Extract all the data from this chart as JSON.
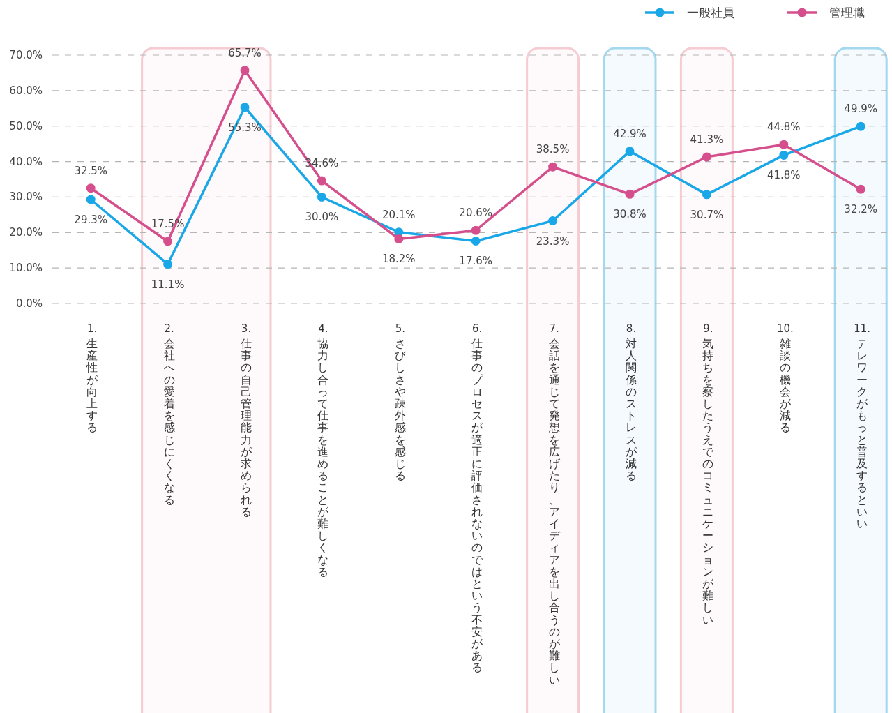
{
  "chart_data": {
    "type": "line",
    "categories": [
      "1.生産性が向上する",
      "2.会社への愛着を感じにくくなる",
      "3.仕事の自己管理能力が求められる",
      "4.協力し合って仕事を進めることが難しくなる",
      "5.さびしさや疎外感を感じる",
      "6.仕事のプロセスが適正に評価されないのではという不安がある",
      "7.会話を通じて発想を広げたり、アイディアを出し合うのが難しい",
      "8.対人関係のストレスが減る",
      "9.気持ちを察したうえでのコミュニケーションが難しい",
      "10.雑談の機会が減る",
      "11.テレワークがもっと普及するといい"
    ],
    "series": [
      {
        "name": "一般社員",
        "color": "#1aa7e8",
        "values": [
          29.3,
          11.1,
          55.3,
          30.0,
          20.1,
          17.6,
          23.3,
          42.9,
          30.7,
          41.8,
          49.9
        ],
        "value_labels": [
          "29.3%",
          "11.1%",
          "55.3%",
          "30.0%",
          "20.1%",
          "17.6%",
          "23.3%",
          "42.9%",
          "30.7%",
          "41.8%",
          "49.9%"
        ]
      },
      {
        "name": "管理職",
        "color": "#d44f8c",
        "values": [
          32.5,
          17.5,
          65.7,
          34.6,
          18.2,
          20.6,
          38.5,
          30.8,
          41.3,
          44.8,
          32.2
        ],
        "value_labels": [
          "32.5%",
          "17.5%",
          "65.7%",
          "34.6%",
          "18.2%",
          "20.6%",
          "38.5%",
          "30.8%",
          "41.3%",
          "44.8%",
          "32.2%"
        ]
      }
    ],
    "ylim": [
      0,
      70
    ],
    "yticks": [
      {
        "value": 0,
        "label": "0.0%"
      },
      {
        "value": 10,
        "label": "10.0%"
      },
      {
        "value": 20,
        "label": "20.0%"
      },
      {
        "value": 30,
        "label": "30.0%"
      },
      {
        "value": 40,
        "label": "40.0%"
      },
      {
        "value": 50,
        "label": "50.0%"
      },
      {
        "value": 60,
        "label": "60.0%"
      },
      {
        "value": 70,
        "label": "70.0%"
      }
    ],
    "bands": [
      {
        "axis": "x",
        "from": "2.会社への愛着を感じにくくなる",
        "to": "3.仕事の自己管理能力が求められる",
        "color": "#f5ccd2"
      },
      {
        "axis": "x",
        "from": "7.会話を通じて発想を広げたり、アイディアを出し合うのが難しい",
        "to": "7.会話を通じて発想を広げたり、アイディアを出し合うのが難しい",
        "color": "#f5ccd2"
      },
      {
        "axis": "x",
        "from": "8.対人関係のストレスが減る",
        "to": "8.対人関係のストレスが減る",
        "color": "#a3d8ef"
      },
      {
        "axis": "x",
        "from": "9.気持ちを察したうえでのコミュニケーションが難しい",
        "to": "9.気持ちを察したうえでのコミュニケーションが難しい",
        "color": "#f5ccd2"
      },
      {
        "axis": "x",
        "from": "11.テレワークがもっと普及するといい",
        "to": "11.テレワークがもっと普及するといい",
        "color": "#a3d8ef"
      }
    ],
    "grid": "y",
    "legend": "top right",
    "marker": "circle",
    "line_style": "solid"
  }
}
